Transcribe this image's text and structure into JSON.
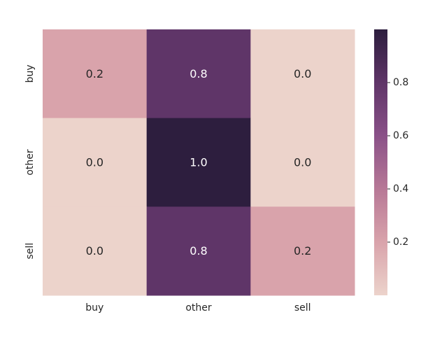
{
  "chart_data": {
    "type": "heatmap",
    "title": "",
    "xlabel": "",
    "ylabel": "",
    "x_categories": [
      "buy",
      "other",
      "sell"
    ],
    "y_categories": [
      "buy",
      "other",
      "sell"
    ],
    "values": [
      [
        0.2,
        0.8,
        0.0
      ],
      [
        0.0,
        1.0,
        0.0
      ],
      [
        0.0,
        0.8,
        0.2
      ]
    ],
    "annotations": [
      [
        "0.2",
        "0.8",
        "0.0"
      ],
      [
        "0.0",
        "1.0",
        "0.0"
      ],
      [
        "0.0",
        "0.8",
        "0.2"
      ]
    ],
    "colorbar": {
      "range": [
        0.0,
        1.0
      ],
      "ticks": [
        0.2,
        0.4,
        0.6,
        0.8
      ],
      "tick_labels": [
        "0.2",
        "0.4",
        "0.6",
        "0.8"
      ],
      "colormap_stops": [
        "#ecd3cb",
        "#d9a3ab",
        "#b77896",
        "#8a5188",
        "#5f3568",
        "#2d1e3e"
      ]
    },
    "grid": false,
    "legend": "none"
  }
}
